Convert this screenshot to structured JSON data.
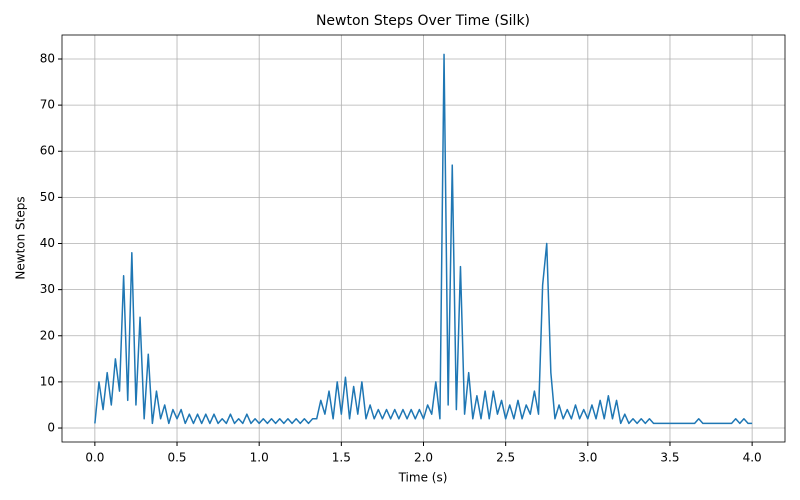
{
  "chart_data": {
    "type": "line",
    "title": "Newton Steps Over Time (Silk)",
    "x_label": "Time (s)",
    "y_label": "Newton Steps",
    "x": [
      0,
      0.025,
      0.05,
      0.075,
      0.1,
      0.125,
      0.15,
      0.175,
      0.2,
      0.225,
      0.25,
      0.275,
      0.3,
      0.325,
      0.35,
      0.375,
      0.4,
      0.425,
      0.45,
      0.475,
      0.5,
      0.525,
      0.55,
      0.575,
      0.6,
      0.625,
      0.65,
      0.675,
      0.7,
      0.725,
      0.75,
      0.775,
      0.8,
      0.825,
      0.85,
      0.875,
      0.9,
      0.925,
      0.95,
      0.975,
      1,
      1.025,
      1.05,
      1.075,
      1.1,
      1.125,
      1.15,
      1.175,
      1.2,
      1.225,
      1.25,
      1.275,
      1.3,
      1.325,
      1.35,
      1.375,
      1.4,
      1.425,
      1.45,
      1.475,
      1.5,
      1.525,
      1.55,
      1.575,
      1.6,
      1.625,
      1.65,
      1.675,
      1.7,
      1.725,
      1.75,
      1.775,
      1.8,
      1.825,
      1.85,
      1.875,
      1.9,
      1.925,
      1.95,
      1.975,
      2,
      2.025,
      2.05,
      2.075,
      2.1,
      2.125,
      2.15,
      2.175,
      2.2,
      2.225,
      2.25,
      2.275,
      2.3,
      2.325,
      2.35,
      2.375,
      2.4,
      2.425,
      2.45,
      2.475,
      2.5,
      2.525,
      2.55,
      2.575,
      2.6,
      2.625,
      2.65,
      2.675,
      2.7,
      2.725,
      2.75,
      2.775,
      2.8,
      2.825,
      2.85,
      2.875,
      2.9,
      2.925,
      2.95,
      2.975,
      3,
      3.025,
      3.05,
      3.075,
      3.1,
      3.125,
      3.15,
      3.175,
      3.2,
      3.225,
      3.25,
      3.275,
      3.3,
      3.325,
      3.35,
      3.375,
      3.4,
      3.425,
      3.45,
      3.475,
      3.5,
      3.525,
      3.55,
      3.575,
      3.6,
      3.625,
      3.65,
      3.675,
      3.7,
      3.725,
      3.75,
      3.775,
      3.8,
      3.825,
      3.85,
      3.875,
      3.9,
      3.925,
      3.95,
      3.975,
      4
    ],
    "series": [
      {
        "name": "Newton Steps",
        "color": "#1f77b4",
        "values": [
          1,
          10,
          4,
          12,
          5,
          15,
          8,
          33,
          6,
          38,
          5,
          24,
          2,
          16,
          1,
          8,
          2,
          5,
          1,
          4,
          2,
          4,
          1,
          3,
          1,
          3,
          1,
          3,
          1,
          3,
          1,
          2,
          1,
          3,
          1,
          2,
          1,
          3,
          1,
          2,
          1,
          2,
          1,
          2,
          1,
          2,
          1,
          2,
          1,
          2,
          1,
          2,
          1,
          2,
          2,
          6,
          3,
          8,
          2,
          10,
          3,
          11,
          2,
          9,
          3,
          10,
          2,
          5,
          2,
          4,
          2,
          4,
          2,
          4,
          2,
          4,
          2,
          4,
          2,
          4,
          2,
          5,
          3,
          10,
          2,
          81,
          5,
          57,
          4,
          35,
          3,
          12,
          2,
          7,
          2,
          8,
          2,
          8,
          3,
          6,
          2,
          5,
          2,
          6,
          2,
          5,
          3,
          8,
          3,
          31,
          40,
          12,
          2,
          5,
          2,
          4,
          2,
          5,
          2,
          4,
          2,
          5,
          2,
          6,
          2,
          7,
          2,
          6,
          1,
          3,
          1,
          2,
          1,
          2,
          1,
          2,
          1,
          1,
          1,
          1,
          1,
          1,
          1,
          1,
          1,
          1,
          1,
          2,
          1,
          1,
          1,
          1,
          1,
          1,
          1,
          1,
          2,
          1,
          2,
          1,
          1
        ]
      }
    ],
    "xlim": [
      -0.2,
      4.2
    ],
    "ylim": [
      -3.03,
      85.2
    ],
    "xticks": [
      {
        "value": 0,
        "label": "0.0"
      },
      0.5,
      {
        "value": 1,
        "label": "1.0"
      },
      1.5,
      {
        "value": 2,
        "label": "2.0"
      },
      2.5,
      {
        "value": 3,
        "label": "3.0"
      },
      3.5,
      {
        "value": 4,
        "label": "4.0"
      }
    ],
    "yticks": [
      0,
      10,
      20,
      30,
      40,
      50,
      60,
      70,
      80
    ],
    "grid": true
  }
}
